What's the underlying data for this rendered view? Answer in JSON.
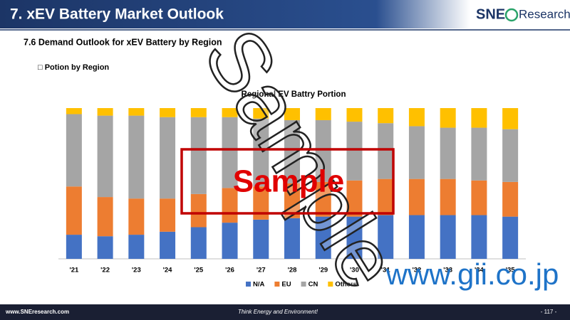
{
  "header": {
    "title": "7. xEV Battery Market Outlook",
    "logo_mark": "SNE",
    "logo_text": "Research"
  },
  "section": "7.6 Demand Outlook for xEV Battery by Region",
  "subsection": "□ Potion by Region",
  "chart_data": {
    "type": "bar",
    "stacked": true,
    "title": "Regional EV Battry Portion",
    "categories": [
      "'21",
      "'22",
      "'23",
      "'24",
      "'25",
      "'26",
      "'27",
      "'28",
      "'29",
      "'30",
      "'31",
      "'32",
      "'33",
      "'34",
      "'35"
    ],
    "ylim": [
      0,
      100
    ],
    "series": [
      {
        "name": "N/A",
        "color": "#4472c4",
        "values": [
          16,
          15,
          16,
          18,
          21,
          24,
          26,
          27,
          28,
          28,
          29,
          29,
          29,
          29,
          28
        ]
      },
      {
        "name": "EU",
        "color": "#ed7d31",
        "values": [
          32,
          26,
          24,
          22,
          22,
          23,
          22,
          23,
          23,
          24,
          24,
          24,
          24,
          23,
          23
        ]
      },
      {
        "name": "CN",
        "color": "#a5a5a5",
        "values": [
          48,
          54,
          55,
          54,
          51,
          47,
          45,
          42,
          41,
          39,
          37,
          35,
          34,
          35,
          35
        ]
      },
      {
        "name": "Others",
        "color": "#ffc000",
        "values": [
          4,
          5,
          5,
          6,
          6,
          6,
          7,
          8,
          8,
          9,
          10,
          12,
          13,
          13,
          14
        ]
      }
    ]
  },
  "watermark": {
    "diagonal": "Sample",
    "boxed": "Sample",
    "url": "www.gii.co.jp"
  },
  "footer": {
    "website": "www.SNEresearch.com",
    "slogan": "Think Energy and Environment!",
    "page": "- 117 -"
  }
}
